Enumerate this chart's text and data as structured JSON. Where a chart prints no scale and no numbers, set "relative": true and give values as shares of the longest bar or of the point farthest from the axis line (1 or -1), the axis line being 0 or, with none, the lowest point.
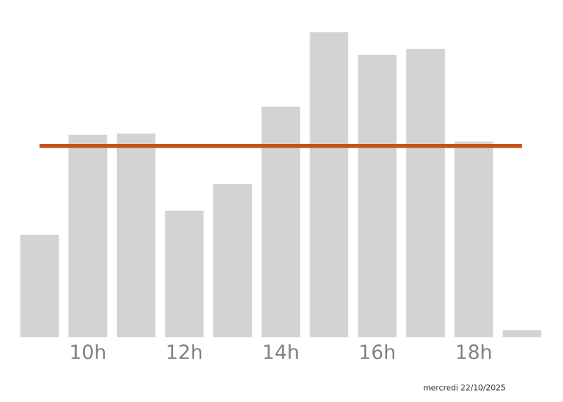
{
  "chart_data": {
    "type": "bar",
    "relative": true,
    "categories": [
      null,
      "10h",
      null,
      "12h",
      null,
      "14h",
      null,
      "16h",
      null,
      "18h",
      null
    ],
    "values": [
      0.336,
      0.664,
      0.668,
      0.415,
      0.502,
      0.756,
      1,
      0.926,
      0.945,
      0.641,
      0.023
    ],
    "color": "#d3d3d3",
    "ref_lines": [
      {
        "axis": "y",
        "value": 0.627,
        "color": "#c4501a"
      }
    ],
    "annotations": [
      "mercredi 22/10/2025"
    ],
    "grid": false
  }
}
